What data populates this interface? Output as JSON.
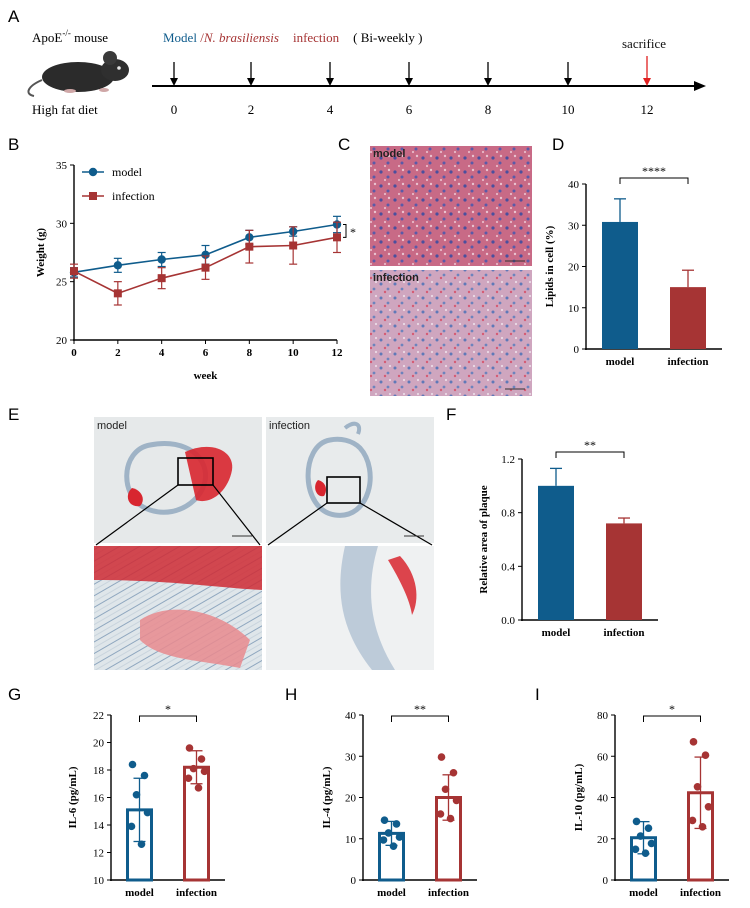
{
  "colors": {
    "model": "#0f5c8c",
    "infection": "#a63434"
  },
  "panel_letters": [
    "A",
    "B",
    "C",
    "D",
    "E",
    "F",
    "G",
    "H",
    "I"
  ],
  "timeline": {
    "mouse_label": "ApoE",
    "mouse_sup": "-/-",
    "mouse_suffix": " mouse",
    "diet": "High fat diet",
    "model_text": "Model",
    "slash": " /",
    "species": "N. brasiliensis",
    "infection_text": "infection",
    "schedule": "( Bi-weekly )",
    "sacrifice": "sacrifice",
    "ticks": [
      "0",
      "2",
      "4",
      "6",
      "8",
      "10",
      "12"
    ]
  },
  "histology": {
    "C_labels": [
      "model",
      "infection"
    ],
    "E_labels": [
      "model",
      "infection"
    ]
  },
  "chart_data": [
    {
      "id": "B",
      "type": "line",
      "xlabel": "week",
      "ylabel": "Weight (g)",
      "x": [
        0,
        2,
        4,
        6,
        8,
        10,
        12
      ],
      "xticks": [
        "0",
        "2",
        "4",
        "6",
        "8",
        "10",
        "12"
      ],
      "ylim": [
        20,
        35
      ],
      "yticks": [
        "20",
        "25",
        "30",
        "35"
      ],
      "series": [
        {
          "name": "model",
          "values": [
            25.8,
            26.4,
            26.9,
            27.3,
            28.8,
            29.3,
            29.9
          ],
          "err": [
            0.4,
            0.6,
            0.6,
            0.8,
            0.6,
            0.4,
            0.7
          ]
        },
        {
          "name": "infection",
          "values": [
            25.9,
            24.0,
            25.3,
            26.2,
            28.0,
            28.1,
            28.8
          ],
          "err": [
            0.6,
            1.0,
            0.9,
            1.0,
            1.4,
            1.6,
            1.3
          ]
        }
      ],
      "significance": "*"
    },
    {
      "id": "D",
      "type": "bar",
      "categories": [
        "model",
        "infection"
      ],
      "values": [
        30.8,
        15.0
      ],
      "err": [
        5.6,
        4.1
      ],
      "ylabel": "Lipids in cell (%)",
      "ylim": [
        0,
        40
      ],
      "yticks": [
        "0",
        "10",
        "20",
        "30",
        "40"
      ],
      "significance": "****"
    },
    {
      "id": "F",
      "type": "bar",
      "categories": [
        "model",
        "infection"
      ],
      "values": [
        1.0,
        0.72
      ],
      "err": [
        0.13,
        0.04
      ],
      "ylabel": "Relative  area of plaque",
      "ylim": [
        0,
        1.2
      ],
      "yticks": [
        "0.0",
        "0.4",
        "0.8",
        "1.2"
      ],
      "significance": "**"
    },
    {
      "id": "G",
      "type": "bar",
      "categories": [
        "model",
        "infection"
      ],
      "values": [
        15.1,
        18.2
      ],
      "err": [
        2.3,
        1.2
      ],
      "points": [
        [
          18.4,
          17.6,
          16.2,
          14.9,
          13.9,
          12.6
        ],
        [
          19.6,
          18.8,
          18.1,
          17.9,
          17.4,
          16.7
        ]
      ],
      "ylabel": "IL-6 (pg/mL)",
      "ylim": [
        10,
        22
      ],
      "yticks": [
        "10",
        "12",
        "14",
        "16",
        "18",
        "20",
        "22"
      ],
      "significance": "*"
    },
    {
      "id": "H",
      "type": "bar",
      "categories": [
        "model",
        "infection"
      ],
      "values": [
        11.3,
        20.0
      ],
      "err": [
        2.9,
        5.5
      ],
      "points": [
        [
          14.5,
          13.6,
          11.4,
          10.4,
          9.7,
          8.2
        ],
        [
          29.8,
          26.0,
          22.0,
          19.3,
          16.0,
          14.9
        ]
      ],
      "ylabel": "IL-4 (pg/mL)",
      "ylim": [
        0,
        40
      ],
      "yticks": [
        "0",
        "10",
        "20",
        "30",
        "40"
      ],
      "significance": "**"
    },
    {
      "id": "I",
      "type": "bar",
      "categories": [
        "model",
        "infection"
      ],
      "values": [
        20.5,
        42.3
      ],
      "err": [
        7.8,
        17.3
      ],
      "points": [
        [
          28.4,
          25.1,
          21.3,
          17.7,
          14.9,
          13.0
        ],
        [
          67.0,
          60.5,
          45.2,
          35.5,
          28.9,
          25.8
        ]
      ],
      "ylabel": "IL-10 (pg/mL)",
      "ylim": [
        0,
        80
      ],
      "yticks": [
        "0",
        "20",
        "40",
        "60",
        "80"
      ],
      "significance": "*"
    }
  ]
}
